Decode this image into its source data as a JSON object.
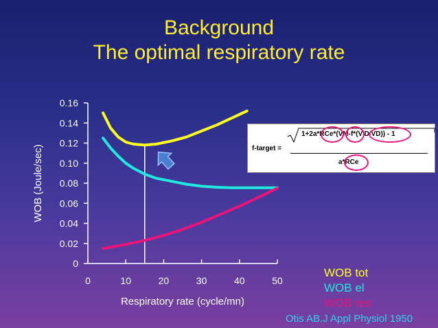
{
  "title": {
    "line1": "Background",
    "line2": "The optimal respiratory rate"
  },
  "formula": {
    "lhs": "f-target =",
    "numerator": "1+2a*RCe*(VM-f*(V'D/VD)) - 1",
    "denominator": "a*RCe"
  },
  "citation": "Otis AB.J Appl Physiol 1950",
  "colors": {
    "tot": "#ffff22",
    "el": "#22e8e0",
    "res": "#e8147a",
    "title": "#ffee33",
    "arrow": "#4a7fd0"
  },
  "chart_data": {
    "type": "line",
    "xlabel": "Respiratory rate (cycle/mn)",
    "ylabel": "WOB (Joule/sec)",
    "xlim": [
      0,
      50
    ],
    "ylim": [
      0,
      0.16
    ],
    "x_ticks": [
      "0",
      "10",
      "20",
      "30",
      "40",
      "50"
    ],
    "y_ticks": [
      "0",
      "0.02",
      "0.04",
      "0.06",
      "0.08",
      "0.10",
      "0.12",
      "0.14",
      "0.16"
    ],
    "optimal_rate_line_x": 15,
    "series": [
      {
        "name": "WOB tot",
        "color_key": "tot",
        "x": [
          4,
          6,
          8,
          10,
          12,
          15,
          18,
          22,
          26,
          30,
          34,
          38,
          42
        ],
        "y": [
          0.15,
          0.135,
          0.126,
          0.121,
          0.119,
          0.118,
          0.119,
          0.122,
          0.126,
          0.132,
          0.138,
          0.145,
          0.152
        ]
      },
      {
        "name": "WOB el",
        "color_key": "el",
        "x": [
          4,
          6,
          8,
          10,
          12,
          15,
          18,
          22,
          26,
          30,
          34,
          38,
          42,
          46,
          50
        ],
        "y": [
          0.125,
          0.115,
          0.107,
          0.1,
          0.095,
          0.089,
          0.085,
          0.082,
          0.079,
          0.077,
          0.076,
          0.0755,
          0.0755,
          0.0755,
          0.0755
        ]
      },
      {
        "name": "WOB res",
        "color_key": "res",
        "x": [
          4,
          10,
          15,
          20,
          25,
          30,
          35,
          40,
          45,
          50
        ],
        "y": [
          0.015,
          0.019,
          0.023,
          0.028,
          0.034,
          0.041,
          0.049,
          0.057,
          0.066,
          0.075
        ]
      }
    ]
  }
}
